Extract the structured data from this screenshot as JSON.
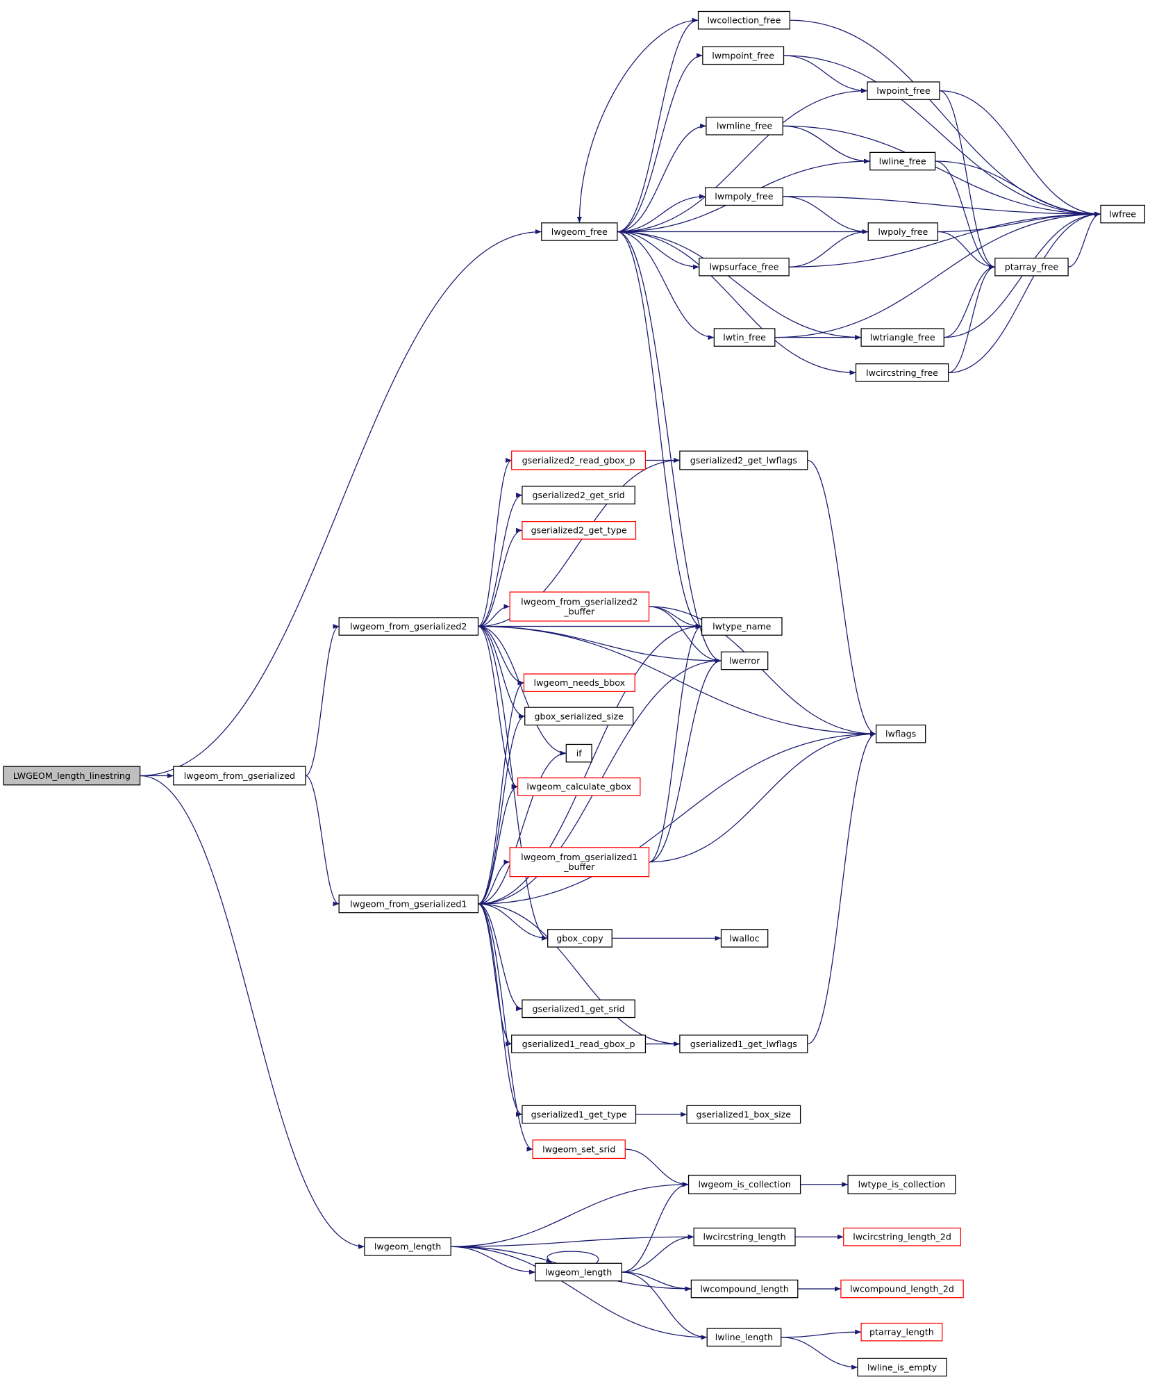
{
  "colors": {
    "edge": "#191970",
    "root_fill": "#bfbfbf",
    "truncated_border": "#ff0000",
    "border": "#000000"
  },
  "nodes": [
    {
      "lines": [
        "LWGEOM_length_linestring"
      ],
      "root": true
    },
    {
      "lines": [
        "lwgeom_from_gserialized"
      ]
    },
    {
      "lines": [
        "lwgeom_free"
      ]
    },
    {
      "lines": [
        "lwcollection_free"
      ]
    },
    {
      "lines": [
        "lwmpoint_free"
      ]
    },
    {
      "lines": [
        "lwpoint_free"
      ]
    },
    {
      "lines": [
        "lwmline_free"
      ]
    },
    {
      "lines": [
        "lwline_free"
      ]
    },
    {
      "lines": [
        "lwmpoly_free"
      ]
    },
    {
      "lines": [
        "lwpoly_free"
      ]
    },
    {
      "lines": [
        "lwpsurface_free"
      ]
    },
    {
      "lines": [
        "ptarray_free"
      ]
    },
    {
      "lines": [
        "lwfree"
      ]
    },
    {
      "lines": [
        "lwtin_free"
      ]
    },
    {
      "lines": [
        "lwtriangle_free"
      ]
    },
    {
      "lines": [
        "lwcircstring_free"
      ]
    },
    {
      "lines": [
        "gserialized2_read_gbox_p"
      ],
      "truncated": true
    },
    {
      "lines": [
        "gserialized2_get_lwflags"
      ]
    },
    {
      "lines": [
        "gserialized2_get_srid"
      ]
    },
    {
      "lines": [
        "gserialized2_get_type"
      ],
      "truncated": true
    },
    {
      "lines": [
        "lwgeom_from_gserialized2",
        "_buffer"
      ],
      "truncated": true
    },
    {
      "lines": [
        "lwgeom_from_gserialized2"
      ]
    },
    {
      "lines": [
        "lwtype_name"
      ]
    },
    {
      "lines": [
        "lwerror"
      ]
    },
    {
      "lines": [
        "lwgeom_needs_bbox"
      ],
      "truncated": true
    },
    {
      "lines": [
        "gbox_serialized_size"
      ]
    },
    {
      "lines": [
        "lwflags"
      ]
    },
    {
      "lines": [
        "if"
      ]
    },
    {
      "lines": [
        "lwgeom_calculate_gbox"
      ],
      "truncated": true
    },
    {
      "lines": [
        "lwgeom_from_gserialized1",
        "_buffer"
      ],
      "truncated": true
    },
    {
      "lines": [
        "lwgeom_from_gserialized1"
      ]
    },
    {
      "lines": [
        "gbox_copy"
      ]
    },
    {
      "lines": [
        "lwalloc"
      ]
    },
    {
      "lines": [
        "gserialized1_get_srid"
      ]
    },
    {
      "lines": [
        "gserialized1_read_gbox_p"
      ]
    },
    {
      "lines": [
        "gserialized1_get_lwflags"
      ]
    },
    {
      "lines": [
        "gserialized1_get_type"
      ]
    },
    {
      "lines": [
        "gserialized1_box_size"
      ]
    },
    {
      "lines": [
        "lwgeom_set_srid"
      ],
      "truncated": true
    },
    {
      "lines": [
        "lwgeom_is_collection"
      ]
    },
    {
      "lines": [
        "lwtype_is_collection"
      ]
    },
    {
      "lines": [
        "lwgeom_length"
      ]
    },
    {
      "lines": [
        "lwcircstring_length"
      ]
    },
    {
      "lines": [
        "lwcircstring_length_2d"
      ],
      "truncated": true
    },
    {
      "lines": [
        "lwgeom_length"
      ]
    },
    {
      "lines": [
        "lwcompound_length"
      ]
    },
    {
      "lines": [
        "lwcompound_length_2d"
      ],
      "truncated": true
    },
    {
      "lines": [
        "lwline_length"
      ]
    },
    {
      "lines": [
        "ptarray_length"
      ],
      "truncated": true
    },
    {
      "lines": [
        "lwline_is_empty"
      ]
    }
  ],
  "edges": [
    [
      0,
      2
    ],
    [
      0,
      1
    ],
    [
      0,
      41
    ],
    [
      1,
      21
    ],
    [
      1,
      30
    ],
    [
      2,
      3
    ],
    [
      2,
      4
    ],
    [
      2,
      5
    ],
    [
      2,
      6
    ],
    [
      2,
      7
    ],
    [
      2,
      8
    ],
    [
      2,
      9
    ],
    [
      2,
      10
    ],
    [
      2,
      13
    ],
    [
      2,
      14
    ],
    [
      2,
      15
    ],
    [
      2,
      22
    ],
    [
      2,
      23
    ],
    [
      3,
      12
    ],
    [
      3,
      2
    ],
    [
      4,
      5
    ],
    [
      4,
      12
    ],
    [
      5,
      12
    ],
    [
      5,
      11
    ],
    [
      6,
      7
    ],
    [
      6,
      12
    ],
    [
      7,
      12
    ],
    [
      7,
      11
    ],
    [
      8,
      9
    ],
    [
      8,
      12
    ],
    [
      9,
      12
    ],
    [
      9,
      11
    ],
    [
      10,
      9
    ],
    [
      10,
      12
    ],
    [
      11,
      12
    ],
    [
      13,
      14
    ],
    [
      13,
      12
    ],
    [
      14,
      11
    ],
    [
      14,
      12
    ],
    [
      15,
      11
    ],
    [
      15,
      12
    ],
    [
      21,
      16
    ],
    [
      21,
      17
    ],
    [
      21,
      18
    ],
    [
      21,
      19
    ],
    [
      21,
      20
    ],
    [
      21,
      22
    ],
    [
      21,
      26
    ],
    [
      21,
      23
    ],
    [
      21,
      24
    ],
    [
      21,
      25
    ],
    [
      21,
      27
    ],
    [
      21,
      28
    ],
    [
      21,
      31
    ],
    [
      16,
      17
    ],
    [
      17,
      26
    ],
    [
      20,
      22
    ],
    [
      20,
      23
    ],
    [
      20,
      26
    ],
    [
      30,
      24
    ],
    [
      30,
      25
    ],
    [
      30,
      27
    ],
    [
      30,
      28
    ],
    [
      30,
      22
    ],
    [
      30,
      29
    ],
    [
      30,
      23
    ],
    [
      30,
      31
    ],
    [
      30,
      26
    ],
    [
      30,
      33
    ],
    [
      30,
      34
    ],
    [
      30,
      35
    ],
    [
      30,
      36
    ],
    [
      30,
      38
    ],
    [
      29,
      22
    ],
    [
      29,
      23
    ],
    [
      29,
      26
    ],
    [
      31,
      32
    ],
    [
      34,
      35
    ],
    [
      35,
      26
    ],
    [
      36,
      37
    ],
    [
      38,
      39
    ],
    [
      39,
      40
    ],
    [
      41,
      39
    ],
    [
      41,
      42
    ],
    [
      41,
      44
    ],
    [
      41,
      45
    ],
    [
      41,
      47
    ],
    [
      44,
      39
    ],
    [
      44,
      42
    ],
    [
      44,
      45
    ],
    [
      44,
      47
    ],
    [
      44,
      44
    ],
    [
      42,
      43
    ],
    [
      45,
      46
    ],
    [
      47,
      48
    ],
    [
      47,
      49
    ]
  ]
}
